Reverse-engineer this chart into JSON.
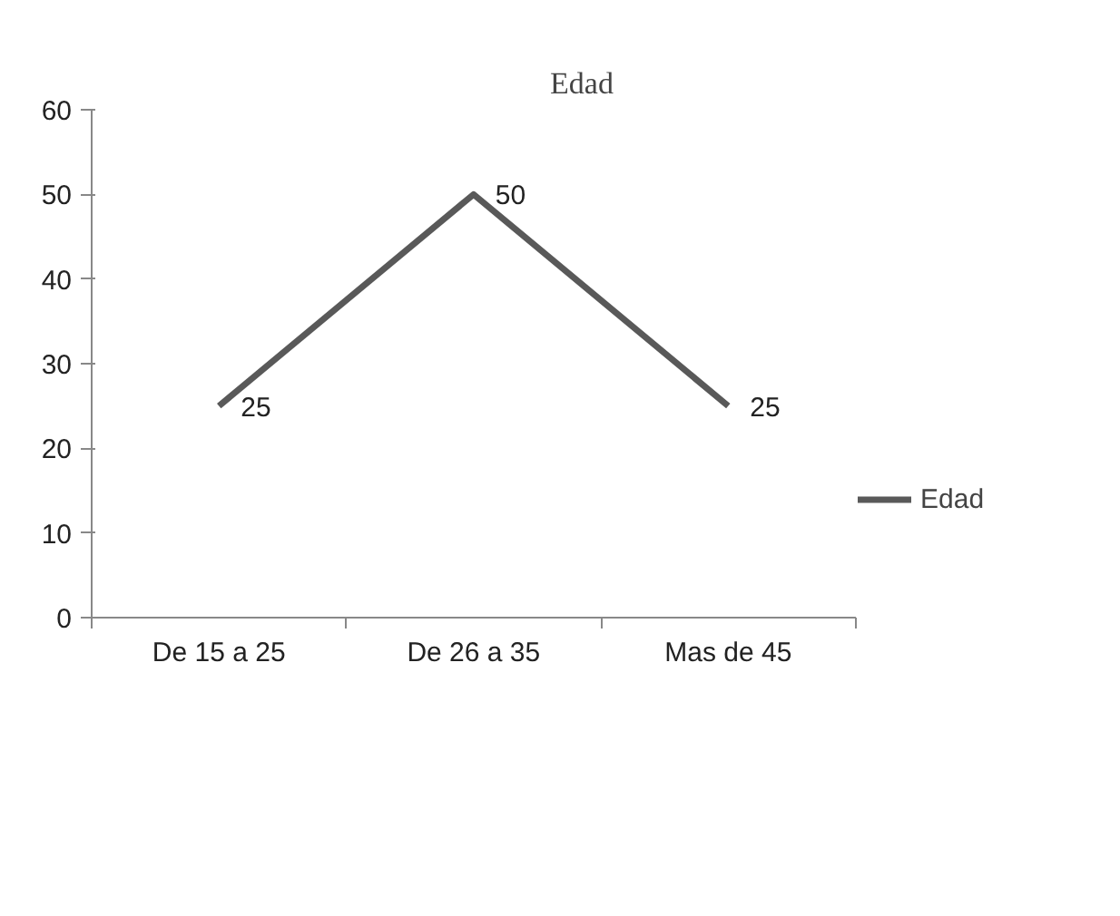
{
  "chart_data": {
    "type": "line",
    "title": "Edad",
    "categories": [
      "De 15 a 25",
      "De 26 a 35",
      "Mas de 45"
    ],
    "series": [
      {
        "name": "Edad",
        "color": "#595959",
        "values": [
          25,
          50,
          25
        ]
      }
    ],
    "ylim": [
      0,
      60
    ],
    "yticks": [
      0,
      10,
      20,
      30,
      40,
      50,
      60
    ],
    "data_labels": true,
    "legend": "right",
    "grid": false,
    "marker": "none"
  }
}
